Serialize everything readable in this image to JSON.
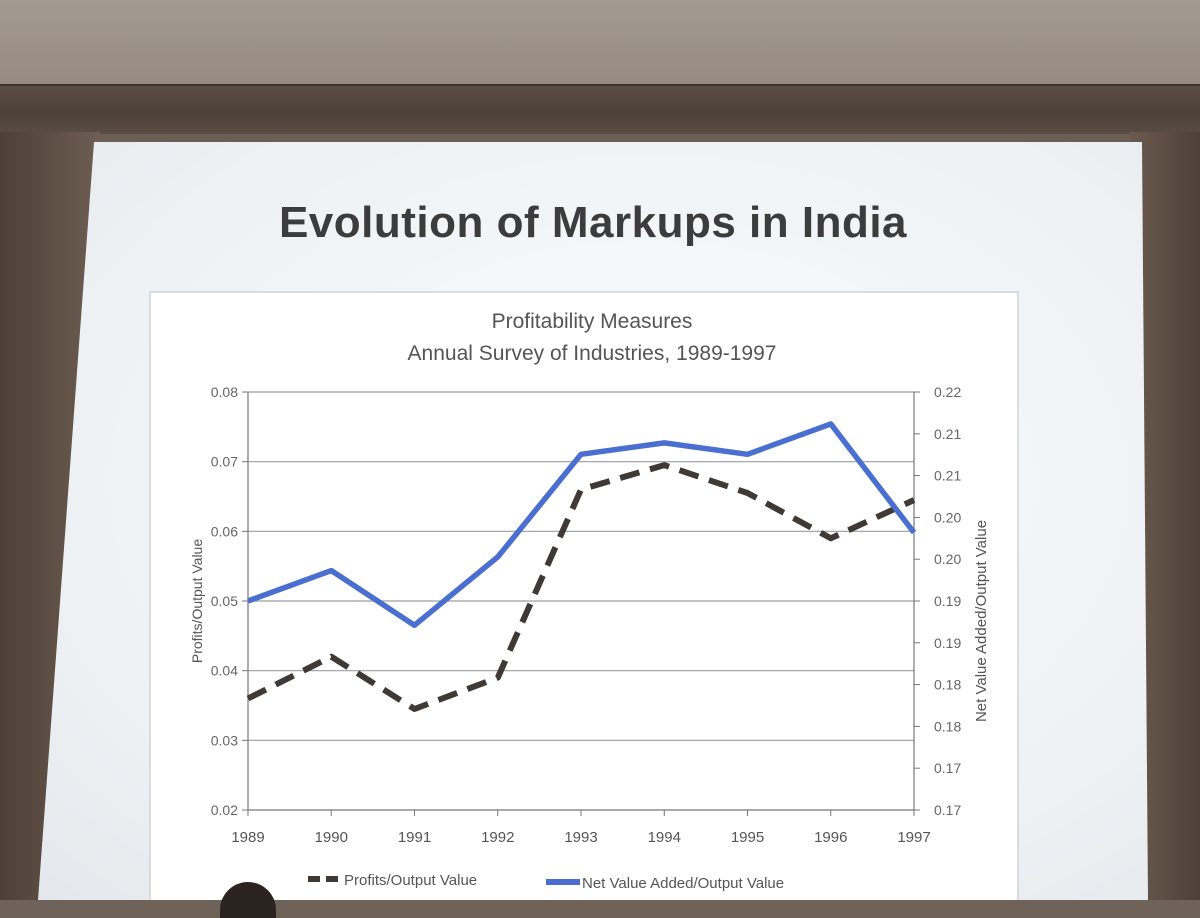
{
  "slide": {
    "title": "Evolution of Markups in India"
  },
  "chart_data": {
    "type": "line",
    "title": "Profitability Measures",
    "subtitle": "Annual Survey of Industries, 1989-1997",
    "x": [
      "1989",
      "1990",
      "1991",
      "1992",
      "1993",
      "1994",
      "1995",
      "1996",
      "1997"
    ],
    "y_left": {
      "label": "Profits/Output Value",
      "range": [
        0.02,
        0.08
      ],
      "ticks": [
        "0.02",
        "0.03",
        "0.04",
        "0.05",
        "0.06",
        "0.07",
        "0.08"
      ]
    },
    "y_right": {
      "label": "Net Value Added/Output Value",
      "range": [
        0.165,
        0.22
      ],
      "ticks": [
        "0.17",
        "0.17",
        "0.18",
        "0.18",
        "0.19",
        "0.19",
        "0.20",
        "0.20",
        "0.21",
        "0.21",
        "0.22"
      ]
    },
    "grid": true,
    "legend": "bottom",
    "series": [
      {
        "name": "Profits/Output Value",
        "axis": "left",
        "style": "dashed",
        "color": "#3f3a36",
        "values": [
          0.036,
          0.042,
          0.0345,
          0.039,
          0.066,
          0.0695,
          0.0655,
          0.059,
          0.0645
        ]
      },
      {
        "name": "Net Value Added/Output Value",
        "axis": "right",
        "style": "solid",
        "color": "#4a6fd0",
        "values": [
          0.1925,
          0.1965,
          0.1893,
          0.1983,
          0.2118,
          0.2133,
          0.2118,
          0.2158,
          0.2015
        ]
      }
    ]
  }
}
